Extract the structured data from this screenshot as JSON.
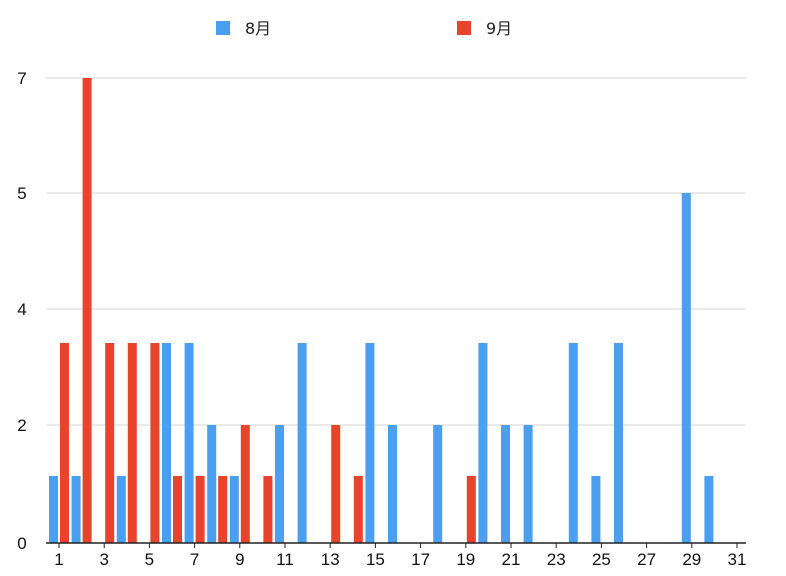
{
  "chart_data": {
    "type": "bar",
    "categories": [
      "1",
      "2",
      "3",
      "4",
      "5",
      "6",
      "7",
      "8",
      "9",
      "10",
      "11",
      "12",
      "13",
      "14",
      "15",
      "16",
      "17",
      "18",
      "19",
      "20",
      "21",
      "22",
      "23",
      "24",
      "25",
      "26",
      "27",
      "28",
      "29",
      "30",
      "31"
    ],
    "x_tick_labels": [
      "1",
      "3",
      "5",
      "7",
      "9",
      "11",
      "13",
      "15",
      "17",
      "19",
      "21",
      "23",
      "25",
      "27",
      "29",
      "31"
    ],
    "y_tick_values": [
      0,
      2,
      4,
      5,
      7
    ],
    "y_tick_labels": [
      "0",
      "2",
      "4",
      "5",
      "7"
    ],
    "series": [
      {
        "name": "8月",
        "color": "#4a9ff0",
        "values": [
          1,
          1,
          0,
          1,
          0,
          3,
          3,
          2,
          1,
          0,
          2,
          3,
          0,
          0,
          3,
          2,
          0,
          2,
          0,
          3,
          2,
          2,
          0,
          3,
          1,
          3,
          0,
          0,
          5,
          1,
          0
        ]
      },
      {
        "name": "9月",
        "color": "#e8432b",
        "values": [
          3,
          7,
          3,
          3,
          3,
          1,
          1,
          1,
          2,
          1,
          0,
          0,
          2,
          1,
          0,
          0,
          0,
          0,
          1,
          0,
          0,
          0,
          0,
          0,
          0,
          0,
          0,
          0,
          0,
          0,
          0
        ]
      }
    ],
    "legend_position": "top",
    "grid": true,
    "title": "",
    "xlabel": "",
    "ylabel": ""
  }
}
